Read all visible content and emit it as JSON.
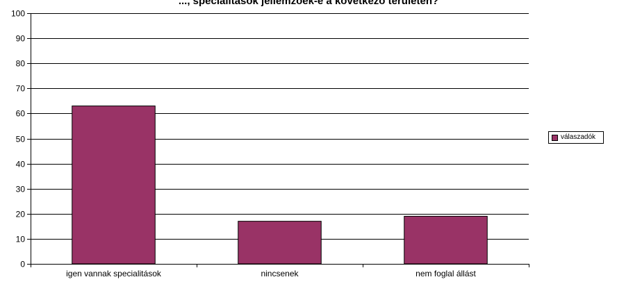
{
  "chart_data": {
    "type": "bar",
    "title": "..., specialitások jellemzőek-e a következő területen?",
    "categories": [
      "igen vannak specialitások",
      "nincsenek",
      "nem foglal állást"
    ],
    "series": [
      {
        "name": "válaszadók",
        "values": [
          63,
          17,
          19
        ],
        "color": "#993366"
      }
    ],
    "ylim": [
      0,
      100
    ],
    "yticks": [
      0,
      10,
      20,
      30,
      40,
      50,
      60,
      70,
      80,
      90,
      100
    ],
    "grid": true,
    "legend": "right"
  }
}
